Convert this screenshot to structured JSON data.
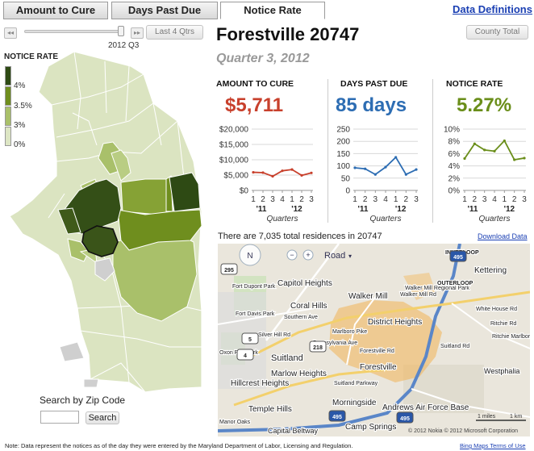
{
  "tabs": [
    {
      "label": "Amount to Cure",
      "active": false
    },
    {
      "label": "Days Past Due",
      "active": false
    },
    {
      "label": "Notice Rate",
      "active": true
    }
  ],
  "data_definitions_label": "Data Definitions",
  "slider": {
    "prev_label": "◂◂",
    "next_label": "▸▸",
    "last4_label": "Last 4 Qtrs",
    "current_label": "2012 Q3"
  },
  "legend": {
    "title": "NOTICE RATE",
    "labels": [
      "4%",
      "3.5%",
      "3%",
      "0%"
    ],
    "colors": [
      "#2e4a14",
      "#6f8e1e",
      "#a9c06a",
      "#dde6c4"
    ]
  },
  "location": {
    "title": "Forestville 20747",
    "quarter": "Quarter 3, 2012",
    "county_total_label": "County Total"
  },
  "metrics": [
    {
      "title": "AMOUNT TO CURE",
      "value": "$5,711",
      "color": "#c8402c"
    },
    {
      "title": "DAYS PAST DUE",
      "value": "85 days",
      "color": "#2d6db3"
    },
    {
      "title": "NOTICE RATE",
      "value": "5.27%",
      "color": "#6a8e1a"
    }
  ],
  "chart_data": [
    {
      "type": "line",
      "x": [
        "1",
        "2",
        "3",
        "4",
        "1",
        "2",
        "3"
      ],
      "year_labels": [
        "'11",
        "'12"
      ],
      "xlabel": "Quarters",
      "yticks": [
        "$20,000",
        "$15,000",
        "$10,000",
        "$5,000",
        "$0"
      ],
      "ylim": [
        0,
        20000
      ],
      "series": [
        {
          "values": [
            5900,
            5800,
            4600,
            6400,
            6800,
            4900,
            5711
          ]
        }
      ]
    },
    {
      "type": "line",
      "x": [
        "1",
        "2",
        "3",
        "4",
        "1",
        "2",
        "3"
      ],
      "year_labels": [
        "'11",
        "'12"
      ],
      "xlabel": "Quarters",
      "yticks": [
        "250",
        "200",
        "150",
        "100",
        "50",
        "0"
      ],
      "ylim": [
        0,
        250
      ],
      "series": [
        {
          "values": [
            92,
            88,
            65,
            95,
            135,
            65,
            85
          ]
        }
      ]
    },
    {
      "type": "line",
      "x": [
        "1",
        "2",
        "3",
        "4",
        "1",
        "2",
        "3"
      ],
      "year_labels": [
        "'11",
        "'12"
      ],
      "xlabel": "Quarters",
      "yticks": [
        "10%",
        "8%",
        "6%",
        "4%",
        "2%",
        "0%"
      ],
      "ylim": [
        0,
        10
      ],
      "series": [
        {
          "values": [
            5.2,
            7.6,
            6.6,
            6.4,
            8.1,
            5.0,
            5.27
          ]
        }
      ]
    }
  ],
  "residences_text": "There are 7,035 total residences in 20747",
  "download_label": "Download Data",
  "map": {
    "compass": "N",
    "road_label": "Road",
    "place_labels": [
      "INNERLOOP",
      "Kettering",
      "Capitol Heights",
      "Walker Mill",
      "Walker Mill Regional Park",
      "OUTERLOOP",
      "Fort Dupont Park",
      "Coral Hills",
      "District Heights",
      "Fort Davis Park",
      "Suitland",
      "Forestville",
      "Oxon Run Park",
      "Marlow Heights",
      "Hillcrest Heights",
      "Suitland Parkway",
      "Westphalia",
      "Morningside",
      "Temple Hills",
      "Andrews Air Force Base",
      "Camp Springs",
      "Manor Oaks",
      "Capital Beltway",
      "Marlboro Pike",
      "Pennsylvania Ave",
      "Ritchie Rd",
      "Southern Ave",
      "Suitland Rd",
      "Silver Hill Rd",
      "White House Rd",
      "Ritchie Marlboro Rd",
      "Forestville Rd",
      "Walker Mill Rd"
    ],
    "route_shields": [
      "295",
      "5",
      "4",
      "218",
      "495",
      "495",
      "495"
    ],
    "copyright": "© 2012 Nokia   © 2012 Microsoft Corporation",
    "scale_labels": [
      "1 miles",
      "1 km"
    ]
  },
  "search": {
    "label": "Search by Zip Code",
    "placeholder": "",
    "button_label": "Search"
  },
  "footnote": "Note: Data represent the notices as of the day they were entered by the Maryland Department of Labor, Licensing and Regulation.",
  "terms_label": "Bing Maps Terms of Use"
}
